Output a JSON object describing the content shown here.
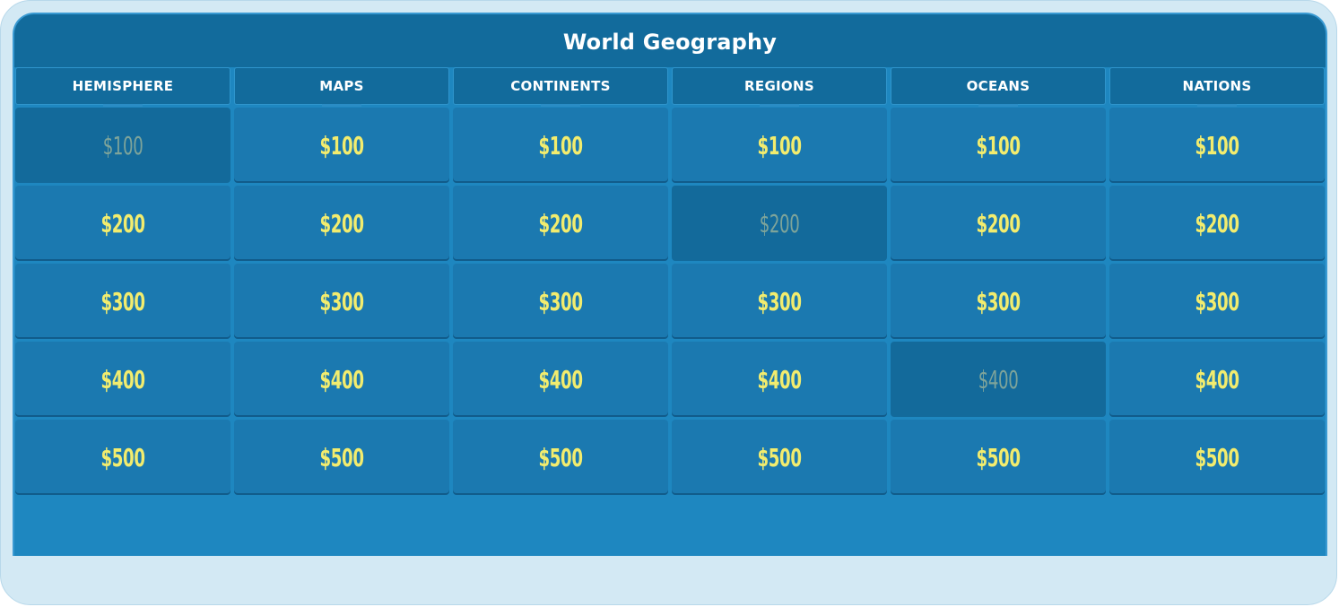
{
  "board": {
    "title": "World Geography",
    "categories": [
      "HEMISPHERE",
      "MAPS",
      "CONTINENTS",
      "REGIONS",
      "OCEANS",
      "NATIONS"
    ],
    "rows": [
      [
        {
          "label": "$100",
          "answered": true
        },
        {
          "label": "$100",
          "answered": false
        },
        {
          "label": "$100",
          "answered": false
        },
        {
          "label": "$100",
          "answered": false
        },
        {
          "label": "$100",
          "answered": false
        },
        {
          "label": "$100",
          "answered": false
        }
      ],
      [
        {
          "label": "$200",
          "answered": false
        },
        {
          "label": "$200",
          "answered": false
        },
        {
          "label": "$200",
          "answered": false
        },
        {
          "label": "$200",
          "answered": true
        },
        {
          "label": "$200",
          "answered": false
        },
        {
          "label": "$200",
          "answered": false
        }
      ],
      [
        {
          "label": "$300",
          "answered": false
        },
        {
          "label": "$300",
          "answered": false
        },
        {
          "label": "$300",
          "answered": false
        },
        {
          "label": "$300",
          "answered": false
        },
        {
          "label": "$300",
          "answered": false
        },
        {
          "label": "$300",
          "answered": false
        }
      ],
      [
        {
          "label": "$400",
          "answered": false
        },
        {
          "label": "$400",
          "answered": false
        },
        {
          "label": "$400",
          "answered": false
        },
        {
          "label": "$400",
          "answered": false
        },
        {
          "label": "$400",
          "answered": true
        },
        {
          "label": "$400",
          "answered": false
        }
      ],
      [
        {
          "label": "$500",
          "answered": false
        },
        {
          "label": "$500",
          "answered": false
        },
        {
          "label": "$500",
          "answered": false
        },
        {
          "label": "$500",
          "answered": false
        },
        {
          "label": "$500",
          "answered": false
        },
        {
          "label": "$500",
          "answered": false
        }
      ]
    ]
  },
  "colors": {
    "page_background": "#d3e9f4",
    "board_background": "#1e87c0",
    "header_background": "#126b9c",
    "tile_background": "#1b79b0",
    "tile_answered_background": "#136a9b",
    "value_text": "#f2ec6e",
    "value_text_answered": "#7ea49a",
    "header_text": "#ffffff"
  }
}
